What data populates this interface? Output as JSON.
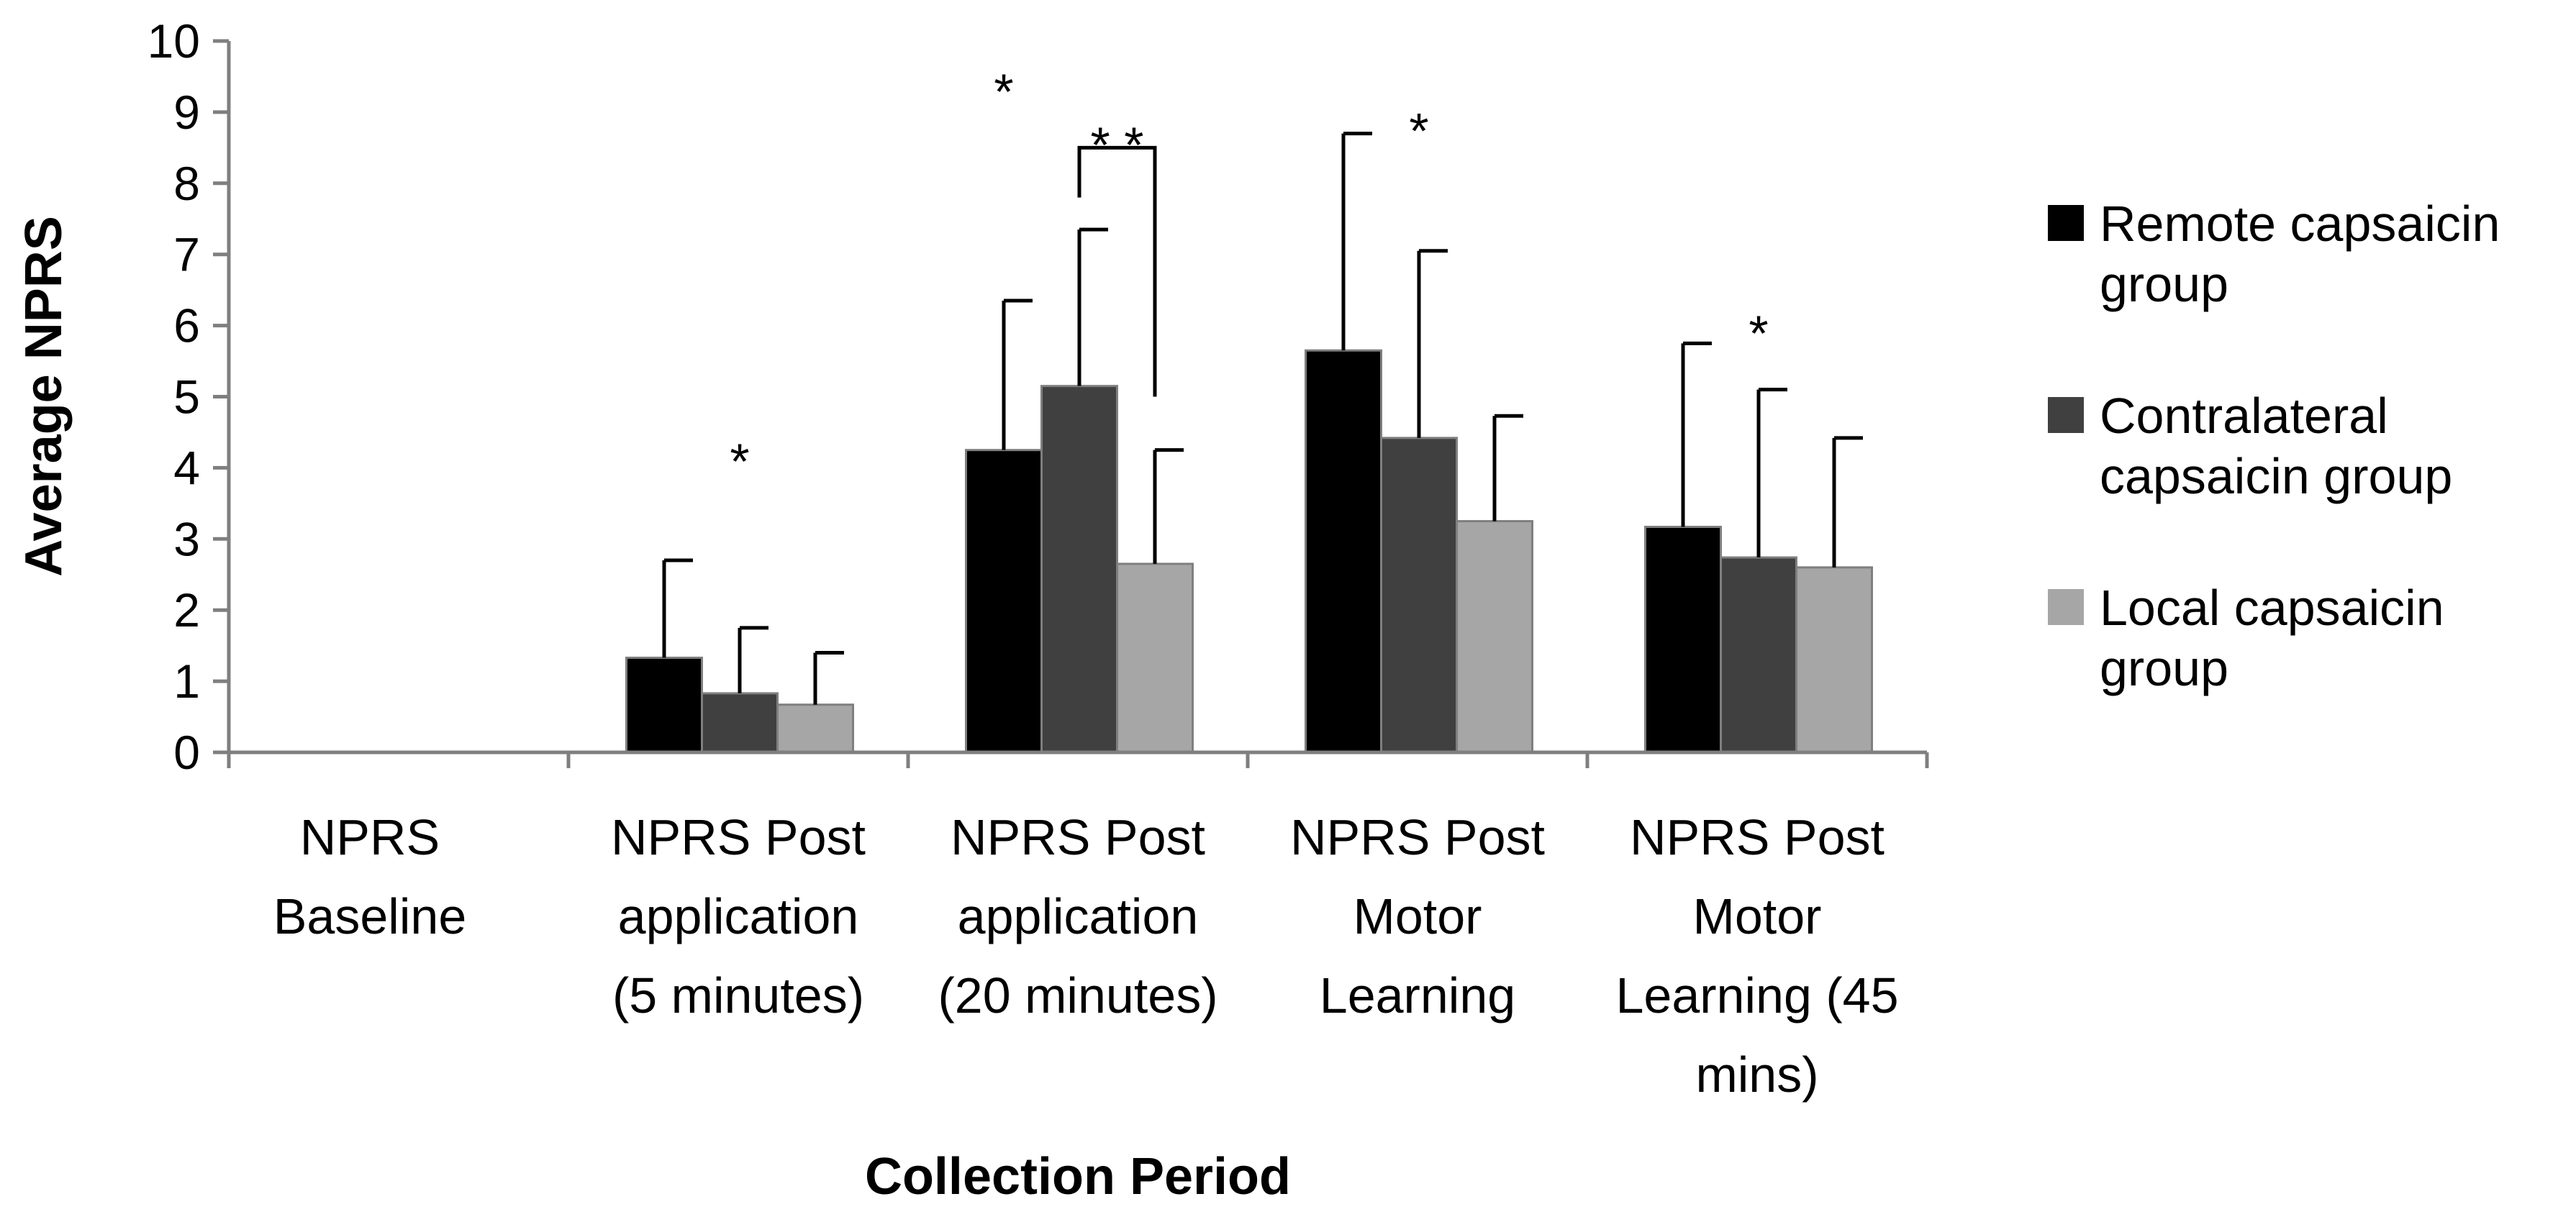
{
  "chart_data": {
    "type": "bar",
    "title": "",
    "xlabel": "Collection Period",
    "ylabel": "Average NPRS",
    "ylim": [
      0,
      10
    ],
    "yticks": [
      "0",
      "1",
      "2",
      "3",
      "4",
      "5",
      "6",
      "7",
      "8",
      "9",
      "10"
    ],
    "grid": false,
    "legend_position": "right",
    "categories": [
      [
        "NPRS",
        "Baseline"
      ],
      [
        "NPRS Post",
        "application",
        "(5 minutes)"
      ],
      [
        "NPRS Post",
        "application",
        "(20 minutes)"
      ],
      [
        "NPRS Post",
        "Motor",
        "Learning"
      ],
      [
        "NPRS Post",
        "Motor",
        "Learning (45",
        "mins)"
      ]
    ],
    "series": [
      {
        "name": "Remote capsaicin group",
        "legend_lines": [
          "Remote capsaicin",
          "group"
        ],
        "color": "#000000",
        "values": [
          0,
          1.33,
          4.25,
          5.65,
          3.17
        ],
        "errors": [
          0,
          1.37,
          2.1,
          3.05,
          2.58
        ]
      },
      {
        "name": "Contralateral capsaicin group",
        "legend_lines": [
          "Contralateral",
          "capsaicin group"
        ],
        "color": "#404040",
        "values": [
          0,
          0.83,
          5.15,
          4.42,
          2.74
        ],
        "errors": [
          0,
          0.92,
          2.2,
          2.63,
          2.36
        ]
      },
      {
        "name": "Local capsaicin group",
        "legend_lines": [
          "Local capsaicin",
          "group"
        ],
        "color": "#a6a6a6",
        "values": [
          0,
          0.67,
          2.65,
          3.25,
          2.6
        ],
        "errors": [
          0,
          0.73,
          1.6,
          1.48,
          1.82
        ]
      }
    ],
    "annotations": [
      {
        "text": "*",
        "category": 1,
        "series": 1,
        "value": 4.3
      },
      {
        "text": "*",
        "category": 2,
        "series": 0,
        "value": 9.5
      },
      {
        "text": "* *",
        "category": 2,
        "series": 1.5,
        "value": 8.75,
        "bracket": {
          "from_series": 1,
          "to_series": 2,
          "top": 8.5,
          "left_bottom": 7.8,
          "right_bottom": 5.0
        }
      },
      {
        "text": "*",
        "category": 3,
        "series": 1,
        "value": 8.95
      },
      {
        "text": "*",
        "category": 4,
        "series": 1,
        "value": 6.1
      }
    ]
  }
}
